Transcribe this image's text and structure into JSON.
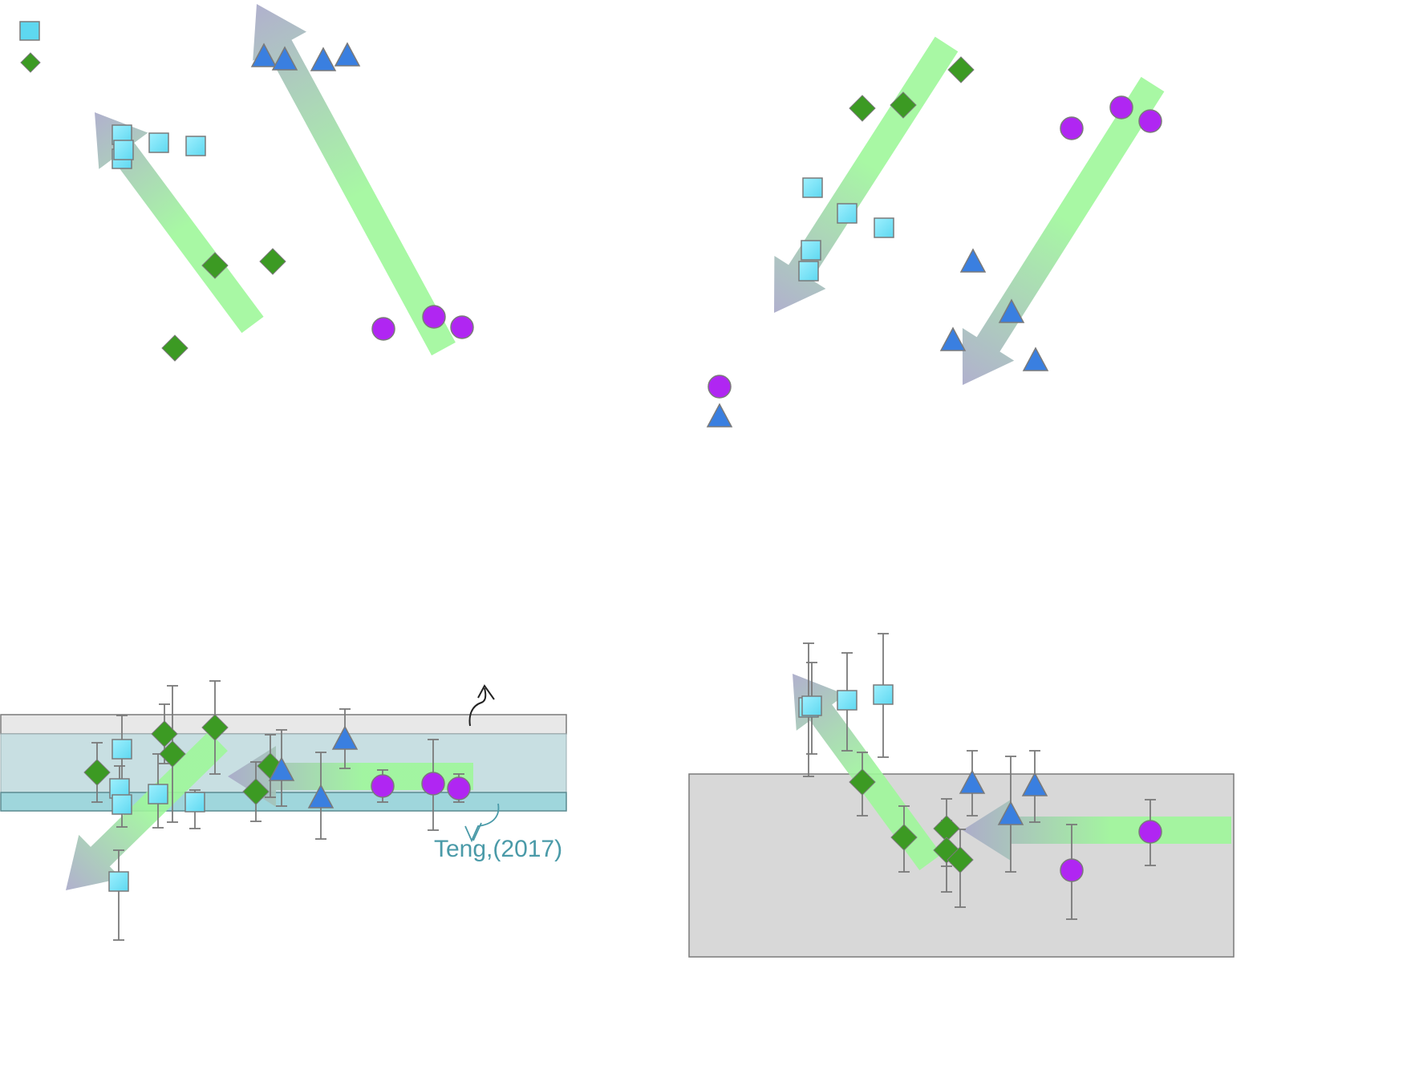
{
  "colors": {
    "square_fill": "#5ed8f0",
    "diamond_fill": "#3c9a23",
    "triangle_fill": "#3a7fe0",
    "circle_fill": "#b026f2",
    "marker_stroke": "#7a7a7a",
    "arrow_head": "#a8a8c8",
    "arrow_tail": "#9ef79a",
    "errorbar": "#7a7a7a",
    "band_light": "#e8e8e8",
    "band_mid": "#c8dfe2",
    "band_teal": "#9fd6dc",
    "panel_gray": "#d8d8d8",
    "annotation": "#4a9aa8"
  },
  "legend_symbols": [
    "square",
    "diamond"
  ],
  "annotation": {
    "text": "Teng,(2017)"
  },
  "chart_data": [
    {
      "type": "scatter",
      "panel": "top-left",
      "title": "",
      "xlabel": "",
      "ylabel": "",
      "series": [
        {
          "marker": "square",
          "x": [
            152,
            152,
            154,
            198,
            244
          ],
          "y": [
            168,
            198,
            187,
            178,
            182
          ]
        },
        {
          "marker": "diamond",
          "x": [
            268,
            340,
            218
          ],
          "y": [
            331,
            326,
            434
          ]
        },
        {
          "marker": "triangle",
          "x": [
            329,
            355,
            403,
            433
          ],
          "y": [
            71,
            75,
            76,
            70
          ]
        },
        {
          "marker": "circle",
          "x": [
            478,
            541,
            576
          ],
          "y": [
            410,
            395,
            408
          ]
        }
      ],
      "arrows": [
        {
          "from": [
            315,
            405
          ],
          "to": [
            118,
            140
          ]
        },
        {
          "from": [
            553,
            435
          ],
          "to": [
            320,
            5
          ]
        }
      ]
    },
    {
      "type": "scatter",
      "panel": "top-right",
      "title": "",
      "xlabel": "",
      "ylabel": "",
      "series": [
        {
          "marker": "diamond",
          "x": [
            1198,
            1075,
            1126
          ],
          "y": [
            87,
            135,
            131
          ]
        },
        {
          "marker": "square",
          "x": [
            1013,
            1056,
            1102,
            1011,
            1008
          ],
          "y": [
            234,
            266,
            284,
            312,
            338
          ]
        },
        {
          "marker": "triangle",
          "x": [
            1213,
            1261,
            1188,
            1291,
            897
          ],
          "y": [
            327,
            390,
            425,
            450,
            520
          ]
        },
        {
          "marker": "circle",
          "x": [
            1336,
            1398,
            1434,
            897
          ],
          "y": [
            160,
            134,
            151,
            482
          ]
        }
      ],
      "arrows": [
        {
          "from": [
            1180,
            55
          ],
          "to": [
            965,
            390
          ]
        },
        {
          "from": [
            1437,
            105
          ],
          "to": [
            1200,
            480
          ]
        }
      ]
    },
    {
      "type": "scatter",
      "panel": "bottom-left",
      "title": "",
      "xlabel": "",
      "ylabel": "",
      "series": [
        {
          "marker": "square",
          "x": [
            152,
            149,
            152,
            197,
            243,
            148
          ],
          "y": [
            934,
            983,
            1003,
            990,
            1000,
            1099
          ],
          "err": [
            [
              892,
              975
            ],
            [
              955,
              1012
            ],
            [
              975,
              1031
            ],
            [
              940,
              1032
            ],
            [
              985,
              1033
            ],
            [
              1060,
              1172
            ]
          ]
        },
        {
          "marker": "diamond",
          "x": [
            121,
            205,
            215,
            268,
            337,
            319
          ],
          "y": [
            963,
            915,
            940,
            907,
            955,
            987
          ],
          "err": [
            [
              926,
              1000
            ],
            [
              878,
              952
            ],
            [
              855,
              1025
            ],
            [
              849,
              965
            ],
            [
              916,
              994
            ],
            [
              950,
              1024
            ]
          ]
        },
        {
          "marker": "triangle",
          "x": [
            430,
            351,
            400
          ],
          "y": [
            922,
            961,
            995
          ],
          "err": [
            [
              884,
              958
            ],
            [
              910,
              1005
            ],
            [
              938,
              1046
            ]
          ]
        },
        {
          "marker": "circle",
          "x": [
            477,
            540,
            572
          ],
          "y": [
            980,
            977,
            983
          ],
          "err": [
            [
              960,
              1000
            ],
            [
              922,
              1035
            ],
            [
              965,
              1000
            ]
          ]
        }
      ],
      "arrows": [
        {
          "from": [
            272,
            924
          ],
          "to": [
            82,
            1110
          ]
        },
        {
          "from": [
            590,
            968
          ],
          "to": [
            284,
            968
          ]
        }
      ]
    },
    {
      "type": "scatter",
      "panel": "bottom-right",
      "title": "",
      "xlabel": "",
      "ylabel": "",
      "series": [
        {
          "marker": "square",
          "x": [
            1008,
            1012,
            1056,
            1101
          ],
          "y": [
            882,
            880,
            873,
            866
          ],
          "err": [
            [
              802,
              968
            ],
            [
              826,
              940
            ],
            [
              814,
              936
            ],
            [
              790,
              944
            ]
          ]
        },
        {
          "marker": "diamond",
          "x": [
            1075,
            1127,
            1180,
            1180,
            1197
          ],
          "y": [
            975,
            1044,
            1033,
            1060,
            1072
          ],
          "err": [
            [
              938,
              1017
            ],
            [
              1005,
              1087
            ],
            [
              996,
              1080
            ],
            [
              1023,
              1112
            ],
            [
              1034,
              1131
            ]
          ]
        },
        {
          "marker": "triangle",
          "x": [
            1212,
            1260,
            1290
          ],
          "y": [
            977,
            1016,
            980
          ],
          "err": [
            [
              936,
              1017
            ],
            [
              943,
              1087
            ],
            [
              936,
              1025
            ]
          ]
        },
        {
          "marker": "circle",
          "x": [
            1336,
            1434
          ],
          "y": [
            1085,
            1037
          ],
          "err": [
            [
              1028,
              1146
            ],
            [
              997,
              1079
            ]
          ]
        }
      ],
      "arrows": [
        {
          "from": [
            1160,
            1075
          ],
          "to": [
            988,
            840
          ]
        },
        {
          "from": [
            1535,
            1035
          ],
          "to": [
            1200,
            1035
          ]
        }
      ]
    }
  ]
}
